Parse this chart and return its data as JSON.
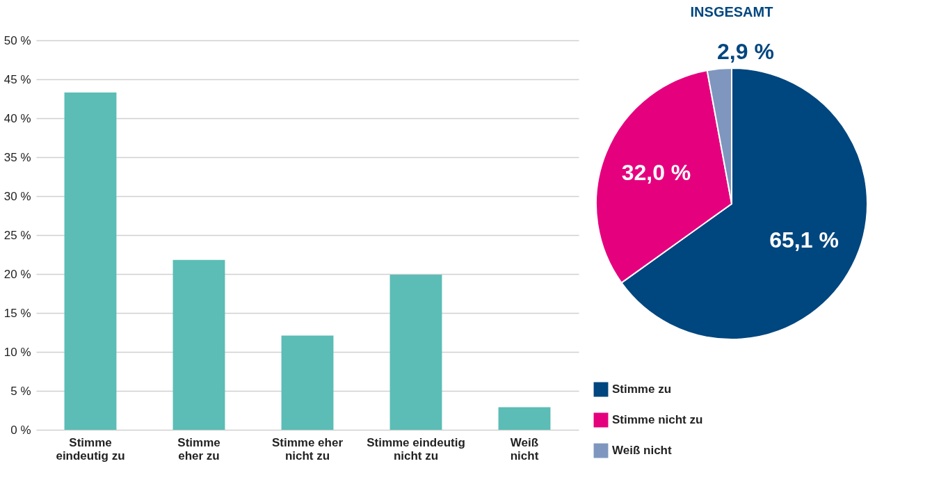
{
  "chart_data": [
    {
      "type": "bar",
      "categories": [
        "Stimme eindeutig zu",
        "Stimme eher zu",
        "Stimme eher nicht zu",
        "Stimme eindeutig nicht zu",
        "Weiß nicht"
      ],
      "series": [
        {
          "color": "#5bbdb6",
          "values": [
            43.3,
            21.8,
            12.1,
            19.9,
            2.9
          ]
        }
      ],
      "ylim": [
        0,
        50
      ],
      "yticks": [
        {
          "value": 0,
          "label": "0 %"
        },
        {
          "value": 5,
          "label": "5 %"
        },
        {
          "value": 10,
          "label": "10 %"
        },
        {
          "value": 15,
          "label": "15 %"
        },
        {
          "value": 20,
          "label": "20 %"
        },
        {
          "value": 25,
          "label": "25 %"
        },
        {
          "value": 30,
          "label": "30 %"
        },
        {
          "value": 35,
          "label": "35 %"
        },
        {
          "value": 40,
          "label": "40 %"
        },
        {
          "value": 45,
          "label": "45 %"
        },
        {
          "value": 50,
          "label": "50 %"
        }
      ],
      "grid": "y",
      "legend": false
    },
    {
      "type": "pie",
      "title": "INSGESAMT",
      "categories": [
        "Stimme zu",
        "Stimme nicht zu",
        "Weiß nicht"
      ],
      "values": [
        65.1,
        32.0,
        2.9
      ],
      "colors": [
        "#00467f",
        "#e5007e",
        "#7f97bf"
      ],
      "value_labels": [
        "65,1 %",
        "32,0 %",
        "2,9 %"
      ],
      "legend": "bottom"
    }
  ]
}
